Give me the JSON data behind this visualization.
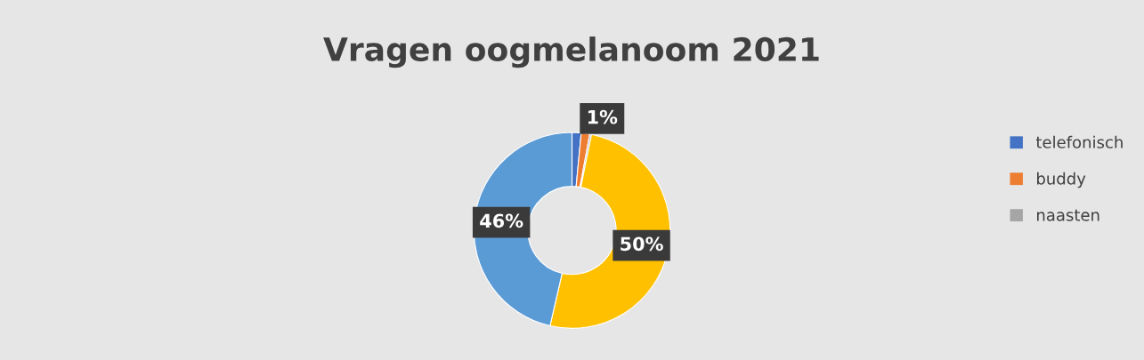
{
  "chart_data": {
    "type": "donut",
    "title": "Vragen oogmelanoom 2021",
    "categories": [
      "telefonisch",
      "buddy",
      "naasten",
      null,
      null
    ],
    "values": [
      1.5,
      1.4,
      0.3,
      50.4,
      46.4
    ],
    "colors": [
      "#4472c4",
      "#ed7d31",
      "#a5a5a5",
      "#ffc000",
      "#5b9bd5"
    ],
    "value_labels": [
      null,
      "1%",
      null,
      "50%",
      "46%"
    ],
    "legend": "right"
  }
}
